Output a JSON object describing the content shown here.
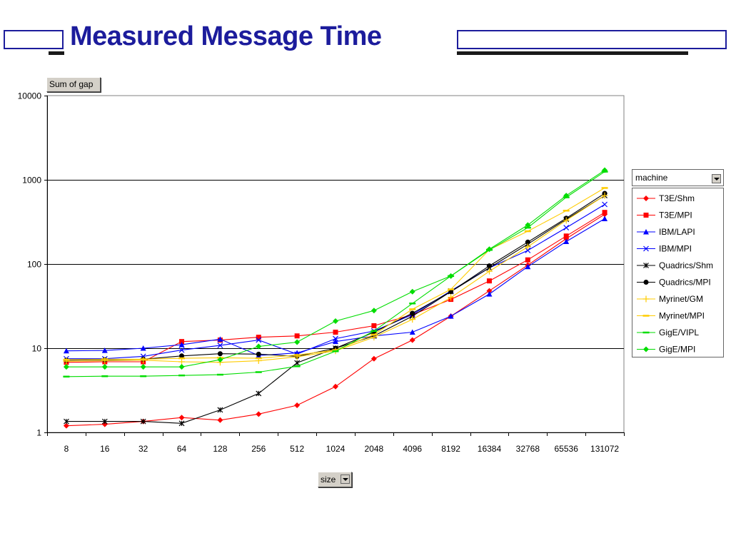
{
  "slide": {
    "title": "Measured Message Time"
  },
  "pivot": {
    "data_field": "Sum of gap",
    "row_field": "size",
    "series_field": "machine"
  },
  "chart_data": {
    "type": "line",
    "title": "",
    "xlabel": "size",
    "ylabel": "Sum of gap",
    "yscale": "log",
    "ylim": [
      1,
      10000
    ],
    "yticks": [
      "1",
      "10",
      "100",
      "1000",
      "10000"
    ],
    "categories": [
      "8",
      "16",
      "32",
      "64",
      "128",
      "256",
      "512",
      "1024",
      "2048",
      "4096",
      "8192",
      "16384",
      "32768",
      "65536",
      "131072"
    ],
    "grid": "horizontal major lines at 10, 100, 1000",
    "legend_position": "right",
    "series": [
      {
        "name": "T3E/Shm",
        "color": "#ff0000",
        "marker": "diamond",
        "values": [
          1.2,
          1.25,
          1.35,
          1.5,
          1.4,
          1.65,
          2.1,
          3.5,
          7.5,
          12.5,
          24,
          48,
          97,
          200,
          390
        ]
      },
      {
        "name": "T3E/MPI",
        "color": "#ff0000",
        "marker": "square",
        "values": [
          6.8,
          6.9,
          6.9,
          12,
          12.5,
          13.5,
          14,
          15.5,
          18.5,
          25,
          38,
          63,
          112,
          215,
          410
        ]
      },
      {
        "name": "IBM/LAPI",
        "color": "#0000ff",
        "marker": "triangle",
        "values": [
          9.3,
          9.4,
          10,
          11,
          12.8,
          8.2,
          8.8,
          12,
          14,
          15.5,
          24,
          44,
          93,
          185,
          345
        ]
      },
      {
        "name": "IBM/MPI",
        "color": "#0000ff",
        "marker": "x",
        "values": [
          7.5,
          7.5,
          8,
          9.5,
          10.8,
          12.5,
          8.5,
          13,
          16,
          25,
          48,
          90,
          145,
          270,
          510
        ]
      },
      {
        "name": "Quadrics/Shm",
        "color": "#000000",
        "marker": "star",
        "values": [
          1.35,
          1.35,
          1.35,
          1.28,
          1.85,
          2.9,
          6.7,
          10,
          14,
          24,
          47,
          90,
          172,
          340,
          650
        ]
      },
      {
        "name": "Quadrics/MPI",
        "color": "#000000",
        "marker": "circle",
        "values": [
          7.2,
          7.3,
          7.4,
          8.1,
          8.6,
          8.5,
          8,
          10,
          15.5,
          26,
          47,
          95,
          182,
          350,
          690
        ]
      },
      {
        "name": "Myrinet/GM",
        "color": "#ffcc00",
        "marker": "plus",
        "values": [
          7,
          7.1,
          7.2,
          6.9,
          6.8,
          7.1,
          7.9,
          9.3,
          13.5,
          22,
          40,
          82,
          160,
          330,
          650
        ]
      },
      {
        "name": "Myrinet/MPI",
        "color": "#ffcc00",
        "marker": "dash",
        "values": [
          7.3,
          7.4,
          7.4,
          7.6,
          7.7,
          7.6,
          8.3,
          9.5,
          14.5,
          29,
          50,
          148,
          245,
          430,
          800
        ]
      },
      {
        "name": "GigE/VIPL",
        "color": "#00dd00",
        "marker": "dash",
        "values": [
          4.6,
          4.65,
          4.65,
          4.75,
          4.85,
          5.2,
          6.1,
          9.2,
          16,
          34,
          72,
          147,
          270,
          620,
          1250
        ]
      },
      {
        "name": "GigE/MPI",
        "color": "#00dd00",
        "marker": "diamond",
        "values": [
          6,
          6,
          6,
          6,
          7.3,
          10.5,
          11.8,
          21,
          28,
          47,
          72,
          150,
          290,
          650,
          1300
        ]
      }
    ]
  }
}
